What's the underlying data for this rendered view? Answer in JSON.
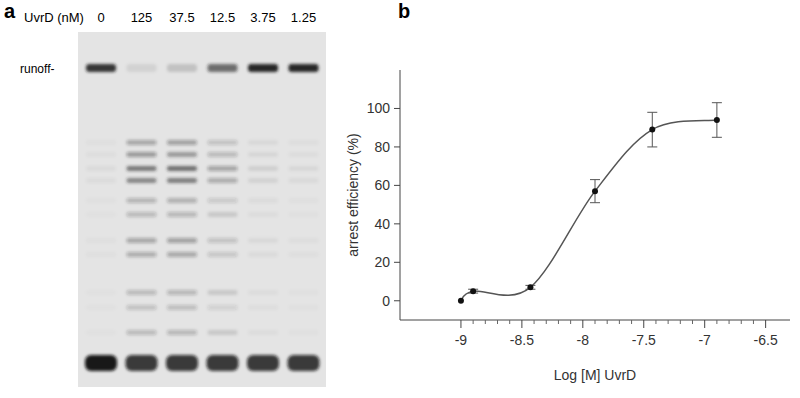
{
  "gel": {
    "panel_label": "a",
    "title": "UvrD (nM)",
    "lanes": [
      0,
      125,
      37.5,
      12.5,
      3.75,
      1.25
    ],
    "band_label": "runoff-",
    "runoff_intensity": [
      0.85,
      0.08,
      0.15,
      0.6,
      0.95,
      0.95
    ],
    "arrest_intensity": [
      0.05,
      0.6,
      0.65,
      0.35,
      0.1,
      0.06
    ]
  },
  "chart_data": {
    "panel_label": "b",
    "type": "line",
    "marker": "circle",
    "x_label": "Log [M] UvrD",
    "y_label": "arrest efficiency (%)",
    "x": [
      -9,
      -8.9,
      -8.43,
      -7.9,
      -7.43,
      -6.9
    ],
    "values": [
      0,
      5,
      7,
      57,
      89,
      94
    ],
    "errors": [
      0,
      1,
      1,
      6,
      9,
      9
    ],
    "xlim": [
      -9.5,
      -6.3
    ],
    "ylim": [
      -10,
      120
    ],
    "xticks": [
      -9,
      -8.5,
      -8,
      -7.5,
      -7,
      -6.5
    ],
    "yticks": [
      0,
      20,
      40,
      60,
      80,
      100
    ]
  }
}
